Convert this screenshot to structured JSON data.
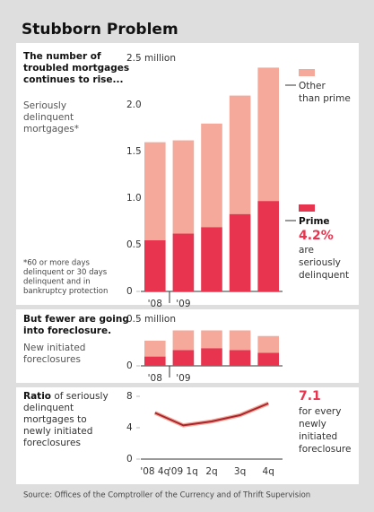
{
  "title": "Stubborn Problem",
  "source": "Source: Offices of the Comptroller of the Currency and of Thrift Supervision",
  "chart_data": [
    {
      "type": "stacked_bar",
      "heading": [
        "The number of",
        "troubled mortgages",
        "continues to rise..."
      ],
      "subheading": [
        "Seriously",
        "delinquent",
        "mortgages*"
      ],
      "footnote": [
        "*60 or more days",
        "delinquent or 30 days",
        "delinquent and in",
        "bankruptcy protection"
      ],
      "categories": [
        "'08",
        "'09",
        null,
        null,
        null
      ],
      "series": [
        {
          "name": "Prime",
          "color": "#e8344e",
          "values": [
            0.55,
            0.62,
            0.69,
            0.83,
            0.97
          ]
        },
        {
          "name": "Other than prime",
          "color": "#f4a99a",
          "values": [
            1.05,
            1.0,
            1.11,
            1.27,
            1.43
          ]
        }
      ],
      "annotation": {
        "value": "4.2%",
        "text": [
          "are",
          "seriously",
          "delinquent"
        ]
      },
      "ylim": [
        0,
        2.5
      ],
      "yticks": [
        0,
        0.5,
        {
          "value": 1,
          "label": "1.0"
        },
        1.5,
        {
          "value": 2,
          "label": "2.0"
        },
        {
          "value": 2.5,
          "label": "2.5 million"
        }
      ]
    },
    {
      "type": "stacked_bar",
      "heading": [
        "But fewer are going",
        "into foreclosure."
      ],
      "subheading": [
        "New initiated",
        "foreclosures"
      ],
      "categories": [
        "'08",
        "'09",
        null,
        null,
        null
      ],
      "series": [
        {
          "color": "#e8344e",
          "values": [
            0.1,
            0.17,
            0.19,
            0.17,
            0.14
          ]
        },
        {
          "color": "#f4a99a",
          "values": [
            0.17,
            0.21,
            0.19,
            0.21,
            0.18
          ]
        }
      ],
      "ylim": [
        0,
        0.5
      ],
      "yticks": [
        0,
        {
          "value": 0.5,
          "label": "0.5 million"
        }
      ]
    },
    {
      "type": "line",
      "heading_bold": "Ratio",
      "heading": [
        " of seriously",
        "delinquent",
        "mortgages to",
        "newly initiated",
        "foreclosures"
      ],
      "categories": [
        "'08 4q",
        "'09 1q",
        "2q",
        "3q",
        "4q"
      ],
      "series": [
        {
          "color": "#a8262e",
          "values": [
            5.9,
            4.3,
            4.8,
            5.6,
            7.1
          ]
        }
      ],
      "annotation": {
        "value": "7.1",
        "text": [
          "for every",
          "newly",
          "initiated",
          "foreclosure"
        ]
      },
      "ylim": [
        0,
        8
      ],
      "yticks": [
        0,
        4,
        8
      ]
    }
  ]
}
